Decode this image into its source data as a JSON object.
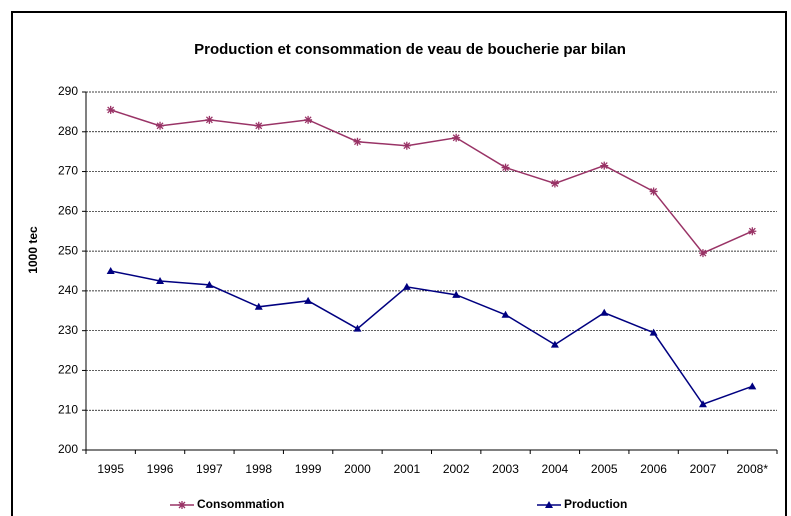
{
  "chart_data": {
    "type": "line",
    "title": "Production et consommation de veau de boucherie par bilan",
    "y_label": "1000 tec",
    "categories": [
      "1995",
      "1996",
      "1997",
      "1998",
      "1999",
      "2000",
      "2001",
      "2002",
      "2003",
      "2004",
      "2005",
      "2006",
      "2007",
      "2008*"
    ],
    "series": [
      {
        "name": "Consommation",
        "color": "#993366",
        "marker": "asterisk",
        "values": [
          285.5,
          281.5,
          283,
          281.5,
          283,
          277.5,
          276.5,
          278.5,
          271,
          267,
          271.5,
          265,
          249.5,
          255
        ]
      },
      {
        "name": "Production",
        "color": "#000080",
        "marker": "triangle",
        "values": [
          245,
          242.5,
          241.5,
          236,
          237.5,
          230.5,
          241,
          239,
          234,
          226.5,
          234.5,
          229.5,
          211.5,
          216
        ]
      }
    ],
    "ylim": [
      200,
      290
    ],
    "yticks": [
      200,
      210,
      220,
      230,
      240,
      250,
      260,
      270,
      280,
      290
    ],
    "grid": true,
    "legend": "bottom"
  }
}
